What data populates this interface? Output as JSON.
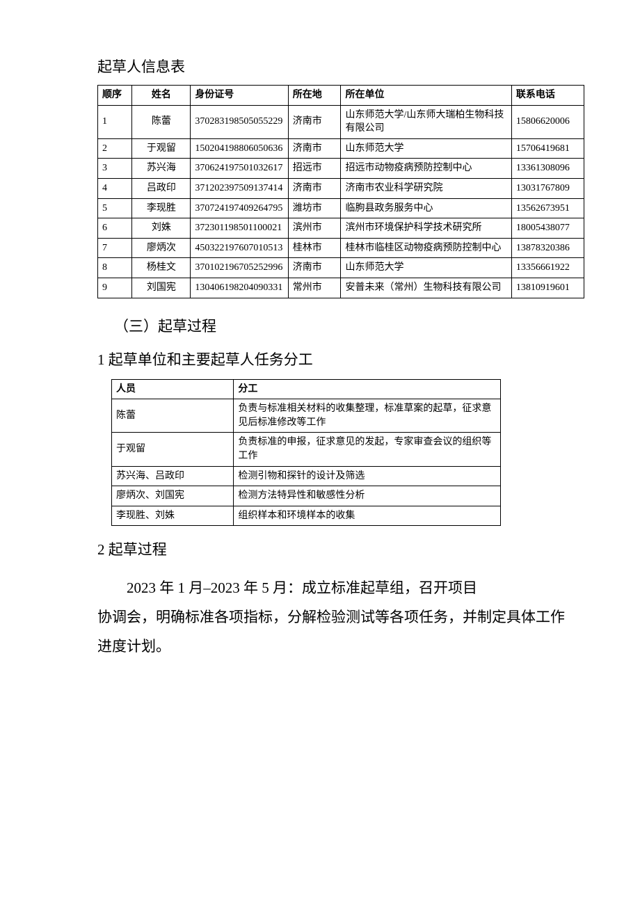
{
  "title1": "起草人信息表",
  "info_table": {
    "headers": [
      "顺序",
      "姓名",
      "身份证号",
      "所在地",
      "所在单位",
      "联系电话"
    ],
    "rows": [
      [
        "1",
        "陈蕾",
        "370283198505055229",
        "济南市",
        "山东师范大学/山东师大瑞柏生物科技有限公司",
        "15806620006"
      ],
      [
        "2",
        "于观留",
        "150204198806050636",
        "济南市",
        "山东师范大学",
        "15706419681"
      ],
      [
        "3",
        "苏兴海",
        "370624197501032617",
        "招远市",
        "招远市动物疫病预防控制中心",
        "13361308096"
      ],
      [
        "4",
        "吕政印",
        "371202397509137414",
        "济南市",
        "济南市农业科学研究院",
        "13031767809"
      ],
      [
        "5",
        "李现胜",
        "370724197409264795",
        "潍坊市",
        "临朐县政务服务中心",
        "13562673951"
      ],
      [
        "6",
        "刘姝",
        "372301198501100021",
        "滨州市",
        "滨州市环境保护科学技术研究所",
        "18005438077"
      ],
      [
        "7",
        "廖炳次",
        "450322197607010513",
        "桂林市",
        "桂林市临桂区动物疫病预防控制中心",
        "13878320386"
      ],
      [
        "8",
        "杨桂文",
        "370102196705252996",
        "济南市",
        "山东师范大学",
        "13356661922"
      ],
      [
        "9",
        "刘国宪",
        "130406198204090331",
        "常州市",
        "安普未来（常州）生物科技有限公司",
        "13810919601"
      ]
    ],
    "col_widths": [
      "36px",
      "70px",
      "126px",
      "62px",
      "230px",
      "90px"
    ],
    "font_size": 14,
    "border_color": "#000000"
  },
  "section_heading": "（三）起草过程",
  "subheading1": "1 起草单位和主要起草人任务分工",
  "task_table": {
    "headers": [
      "人员",
      "分工"
    ],
    "rows": [
      [
        "陈蕾",
        "负责与标准相关材料的收集整理，标准草案的起草，征求意见后标准修改等工作"
      ],
      [
        "于观留",
        "负责标准的申报，征求意见的发起，专家审查会议的组织等工作"
      ],
      [
        "苏兴海、吕政印",
        "检测引物和探针的设计及筛选"
      ],
      [
        "廖炳次、刘国宪",
        "检测方法特异性和敏感性分析"
      ],
      [
        "李现胜、刘姝",
        "组织样本和环境样本的收集"
      ]
    ],
    "col_widths": [
      "170px",
      "390px"
    ],
    "font_size": 14,
    "border_color": "#000000"
  },
  "subheading2": "2 起草过程",
  "para_line1": "2023 年 1 月–2023 年 5 月：成立标准起草组，召开项目",
  "para_line2": "协调会，明确标准各项指标，分解检验测试等各项任务，并制定具体工作进度计划。",
  "colors": {
    "text": "#000000",
    "background": "#ffffff",
    "border": "#000000"
  },
  "typography": {
    "body_font": "SimSun",
    "heading_fontsize_pt": 16,
    "table_fontsize_pt": 10.5,
    "para_fontsize_pt": 16
  }
}
